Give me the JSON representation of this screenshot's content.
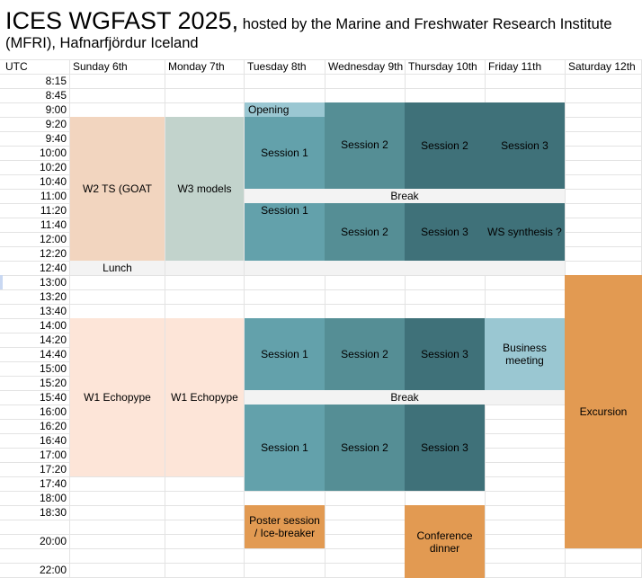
{
  "title": {
    "main": "ICES WGFAST 2025,",
    "rest": " hosted by the Marine and Freshwater Research Institute (MFRI), Hafnarfjördur Iceland"
  },
  "header": {
    "utc": "UTC",
    "days": [
      "Sunday 6th",
      "Monday 7th",
      "Tuesday 8th",
      "Wednesday 9th",
      "Thursday 10th",
      "Friday 11th",
      "Saturday 12th"
    ]
  },
  "times": [
    "8:15",
    "8:45",
    "9:00",
    "9:20",
    "9:40",
    "10:00",
    "10:20",
    "10:40",
    "11:00",
    "11:20",
    "11:40",
    "12:00",
    "12:20",
    "12:40",
    "13:00",
    "13:20",
    "13:40",
    "14:00",
    "14:20",
    "14:40",
    "15:00",
    "15:20",
    "15:40",
    "16:00",
    "16:20",
    "16:40",
    "17:00",
    "17:20",
    "17:40",
    "18:00",
    "18:30",
    "",
    "20:00",
    "",
    "22:00"
  ],
  "blocks": {
    "opening": "Opening",
    "tue_s1_am": "Session 1",
    "wed_s2_am": "Session 2",
    "thu_s2_am": "Session 2",
    "fri_s3_am": "Session 3",
    "sun_w2": "W2 TS (GOAT",
    "mon_w3": "W3 models",
    "break_am": "Break",
    "tue_s1_late": "Session 1",
    "wed_s2_late": "Session 2",
    "thu_s3_late": "Session 3",
    "fri_synthesis": "WS synthesis ?",
    "lunch": "Lunch",
    "sun_w1": "W1 Echopype",
    "mon_w1": "W1 Echopype",
    "tue_s1_pm": "Session 1",
    "wed_s2_pm": "Session 2",
    "thu_s3_pm": "Session 3",
    "fri_business": "Business meeting",
    "break_pm": "Break",
    "tue_s1_eve": "Session 1",
    "wed_s2_eve": "Session 2",
    "thu_s3_eve": "Session 3",
    "excursion": "Excursion",
    "poster": "Poster session / Ice-breaker",
    "dinner": "Conference dinner"
  },
  "colors": {
    "peach": "#f2d5bf",
    "sage": "#c2d3cc",
    "light_peach": "#fde5d8",
    "teal_light": "#63a1ab",
    "teal_mid": "#558e95",
    "teal_dark": "#3f7179",
    "pale_blue": "#9ac7d2",
    "orange": "#e29a52",
    "break_gray": "#f3f3f3"
  }
}
